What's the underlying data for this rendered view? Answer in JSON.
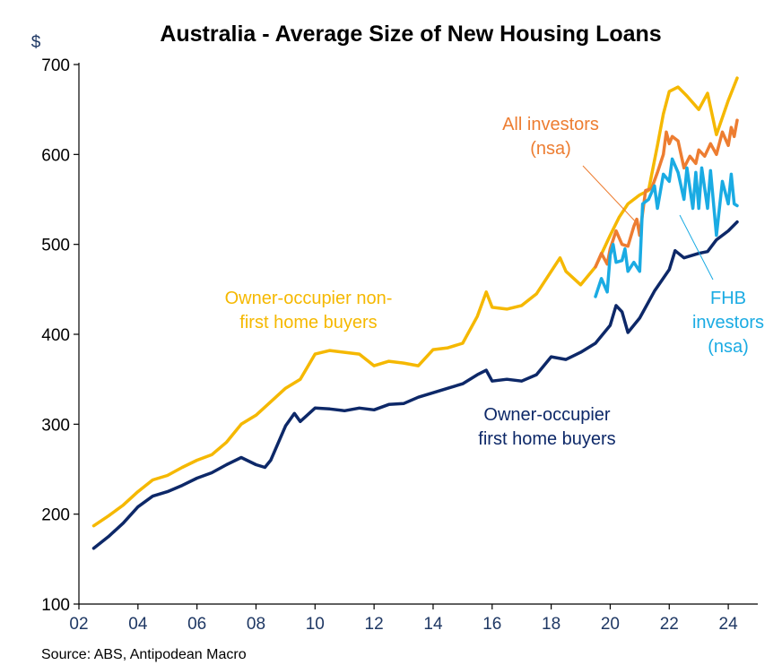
{
  "chart_data": {
    "type": "line",
    "title": "Australia - Average Size of New Housing Loans",
    "ylabel": "$",
    "ylim": [
      100,
      700
    ],
    "y_ticks": [
      "100",
      "200",
      "300",
      "400",
      "500",
      "600",
      "700"
    ],
    "xlim": [
      2002,
      2025
    ],
    "x_ticks": [
      "02",
      "04",
      "06",
      "08",
      "10",
      "12",
      "14",
      "16",
      "18",
      "20",
      "22",
      "24"
    ],
    "legend": "inline annotations",
    "grid": false,
    "series": [
      {
        "name": "Owner-occupier non-first home buyers",
        "color": "#f5b800",
        "points": [
          [
            2002.5,
            187
          ],
          [
            2003,
            198
          ],
          [
            2003.5,
            210
          ],
          [
            2004,
            225
          ],
          [
            2004.5,
            238
          ],
          [
            2005,
            243
          ],
          [
            2005.5,
            252
          ],
          [
            2006,
            260
          ],
          [
            2006.5,
            266
          ],
          [
            2007,
            280
          ],
          [
            2007.5,
            300
          ],
          [
            2008,
            310
          ],
          [
            2008.5,
            325
          ],
          [
            2009,
            340
          ],
          [
            2009.5,
            350
          ],
          [
            2010,
            378
          ],
          [
            2010.5,
            382
          ],
          [
            2011,
            380
          ],
          [
            2011.5,
            378
          ],
          [
            2012,
            365
          ],
          [
            2012.5,
            370
          ],
          [
            2013,
            368
          ],
          [
            2013.5,
            365
          ],
          [
            2014,
            383
          ],
          [
            2014.5,
            385
          ],
          [
            2015,
            390
          ],
          [
            2015.5,
            420
          ],
          [
            2015.8,
            447
          ],
          [
            2016,
            430
          ],
          [
            2016.5,
            428
          ],
          [
            2017,
            432
          ],
          [
            2017.5,
            445
          ],
          [
            2018,
            470
          ],
          [
            2018.3,
            485
          ],
          [
            2018.5,
            470
          ],
          [
            2019,
            455
          ],
          [
            2019.5,
            475
          ],
          [
            2020,
            510
          ],
          [
            2020.3,
            530
          ],
          [
            2020.6,
            545
          ],
          [
            2021,
            555
          ],
          [
            2021.3,
            560
          ],
          [
            2021.6,
            610
          ],
          [
            2021.8,
            645
          ],
          [
            2022,
            670
          ],
          [
            2022.3,
            675
          ],
          [
            2022.6,
            665
          ],
          [
            2023,
            650
          ],
          [
            2023.3,
            668
          ],
          [
            2023.6,
            622
          ],
          [
            2024,
            660
          ],
          [
            2024.3,
            685
          ]
        ]
      },
      {
        "name": "All investors (nsa)",
        "color": "#ed7d31",
        "points": [
          [
            2019.5,
            475
          ],
          [
            2019.7,
            490
          ],
          [
            2019.9,
            478
          ],
          [
            2020,
            495
          ],
          [
            2020.1,
            505
          ],
          [
            2020.2,
            515
          ],
          [
            2020.4,
            500
          ],
          [
            2020.6,
            498
          ],
          [
            2020.8,
            520
          ],
          [
            2020.9,
            528
          ],
          [
            2021,
            510
          ],
          [
            2021.2,
            560
          ],
          [
            2021.4,
            562
          ],
          [
            2021.6,
            580
          ],
          [
            2021.8,
            600
          ],
          [
            2021.9,
            625
          ],
          [
            2022,
            612
          ],
          [
            2022.1,
            620
          ],
          [
            2022.3,
            615
          ],
          [
            2022.5,
            585
          ],
          [
            2022.7,
            598
          ],
          [
            2022.9,
            590
          ],
          [
            2023,
            605
          ],
          [
            2023.2,
            598
          ],
          [
            2023.4,
            612
          ],
          [
            2023.6,
            600
          ],
          [
            2023.8,
            625
          ],
          [
            2024,
            610
          ],
          [
            2024.1,
            630
          ],
          [
            2024.2,
            620
          ],
          [
            2024.3,
            638
          ]
        ]
      },
      {
        "name": "FHB investors (nsa)",
        "color": "#1aabe3",
        "points": [
          [
            2019.5,
            442
          ],
          [
            2019.7,
            462
          ],
          [
            2019.9,
            447
          ],
          [
            2020,
            488
          ],
          [
            2020.1,
            500
          ],
          [
            2020.2,
            480
          ],
          [
            2020.4,
            482
          ],
          [
            2020.5,
            495
          ],
          [
            2020.6,
            470
          ],
          [
            2020.8,
            480
          ],
          [
            2021,
            470
          ],
          [
            2021.1,
            545
          ],
          [
            2021.3,
            550
          ],
          [
            2021.5,
            565
          ],
          [
            2021.6,
            540
          ],
          [
            2021.8,
            578
          ],
          [
            2022,
            570
          ],
          [
            2022.1,
            595
          ],
          [
            2022.3,
            580
          ],
          [
            2022.5,
            550
          ],
          [
            2022.6,
            585
          ],
          [
            2022.8,
            540
          ],
          [
            2022.9,
            580
          ],
          [
            2023,
            540
          ],
          [
            2023.1,
            585
          ],
          [
            2023.3,
            540
          ],
          [
            2023.4,
            582
          ],
          [
            2023.6,
            510
          ],
          [
            2023.8,
            570
          ],
          [
            2024,
            545
          ],
          [
            2024.1,
            578
          ],
          [
            2024.2,
            545
          ],
          [
            2024.3,
            543
          ]
        ]
      },
      {
        "name": "Owner-occupier first home buyers",
        "color": "#0d2868",
        "points": [
          [
            2002.5,
            162
          ],
          [
            2003,
            175
          ],
          [
            2003.5,
            190
          ],
          [
            2004,
            208
          ],
          [
            2004.5,
            220
          ],
          [
            2005,
            225
          ],
          [
            2005.5,
            232
          ],
          [
            2006,
            240
          ],
          [
            2006.5,
            246
          ],
          [
            2007,
            255
          ],
          [
            2007.5,
            263
          ],
          [
            2008,
            255
          ],
          [
            2008.3,
            252
          ],
          [
            2008.5,
            260
          ],
          [
            2009,
            298
          ],
          [
            2009.3,
            312
          ],
          [
            2009.5,
            303
          ],
          [
            2010,
            318
          ],
          [
            2010.5,
            317
          ],
          [
            2011,
            315
          ],
          [
            2011.5,
            318
          ],
          [
            2012,
            316
          ],
          [
            2012.5,
            322
          ],
          [
            2013,
            323
          ],
          [
            2013.5,
            330
          ],
          [
            2014,
            335
          ],
          [
            2014.5,
            340
          ],
          [
            2015,
            345
          ],
          [
            2015.5,
            355
          ],
          [
            2015.8,
            360
          ],
          [
            2016,
            348
          ],
          [
            2016.5,
            350
          ],
          [
            2017,
            348
          ],
          [
            2017.5,
            355
          ],
          [
            2018,
            375
          ],
          [
            2018.5,
            372
          ],
          [
            2019,
            380
          ],
          [
            2019.5,
            390
          ],
          [
            2020,
            410
          ],
          [
            2020.2,
            432
          ],
          [
            2020.4,
            425
          ],
          [
            2020.6,
            402
          ],
          [
            2021,
            418
          ],
          [
            2021.5,
            448
          ],
          [
            2022,
            472
          ],
          [
            2022.2,
            493
          ],
          [
            2022.5,
            485
          ],
          [
            2023,
            490
          ],
          [
            2023.3,
            492
          ],
          [
            2023.6,
            505
          ],
          [
            2024,
            515
          ],
          [
            2024.3,
            525
          ]
        ]
      }
    ],
    "annotations": [
      {
        "lines": [
          "Owner-occupier non-",
          "first home buyers"
        ],
        "color": "#f5b800"
      },
      {
        "lines": [
          "All investors",
          "(nsa)"
        ],
        "color": "#ed7d31"
      },
      {
        "lines": [
          "FHB",
          "investors",
          "(nsa)"
        ],
        "color": "#1aabe3"
      },
      {
        "lines": [
          "Owner-occupier",
          "first home buyers"
        ],
        "color": "#0d2868"
      }
    ],
    "source": "Source: ABS, Antipodean Macro"
  }
}
